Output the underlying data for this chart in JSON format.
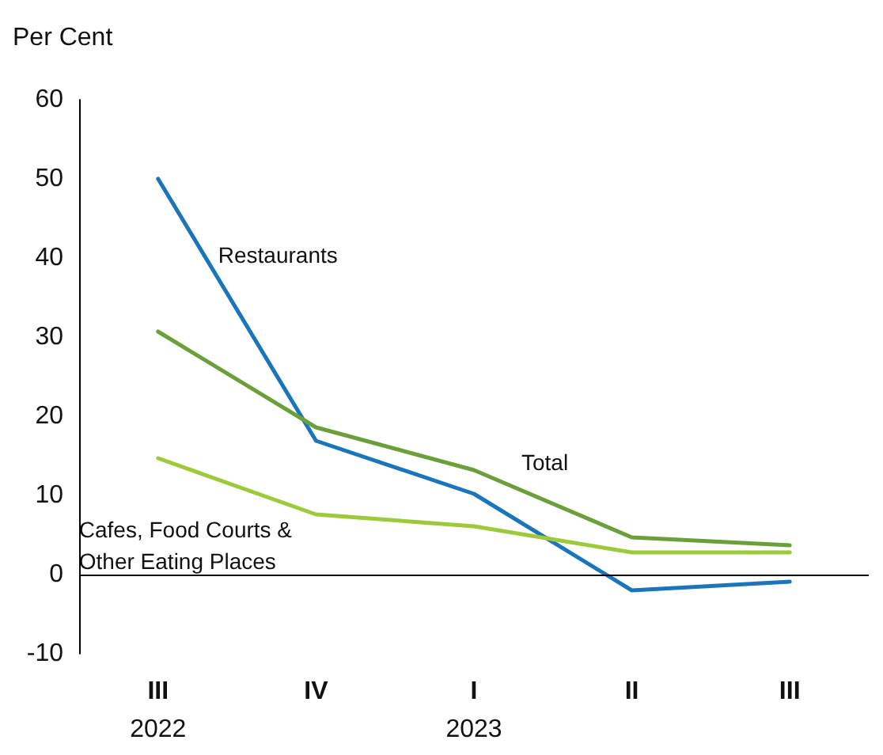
{
  "chart_data": {
    "type": "line",
    "ylabel": "Per Cent",
    "categories": [
      "III\n2022",
      "IV",
      "I\n2023",
      "II",
      "III"
    ],
    "series": [
      {
        "name": "Restaurants",
        "color": "#1a75bb",
        "values": [
          50,
          16.9,
          10.2,
          -2,
          -0.9
        ]
      },
      {
        "name": "Total",
        "color": "#6a9f3a",
        "values": [
          30.7,
          18.6,
          13.2,
          4.7,
          3.7
        ]
      },
      {
        "name": "Cafes, Food Courts &\nOther Eating Places",
        "color": "#9dc93b",
        "values": [
          14.7,
          7.6,
          6.1,
          2.8,
          2.8
        ]
      }
    ],
    "ylim": [
      -10,
      60
    ],
    "yticks": [
      -10,
      0,
      10,
      20,
      30,
      40,
      50,
      60
    ],
    "ref_lines": [
      {
        "axis": "y",
        "value": 0,
        "color": "#000000"
      }
    ],
    "grid": false,
    "legend": false,
    "marker": "none",
    "line_style": "solid"
  }
}
